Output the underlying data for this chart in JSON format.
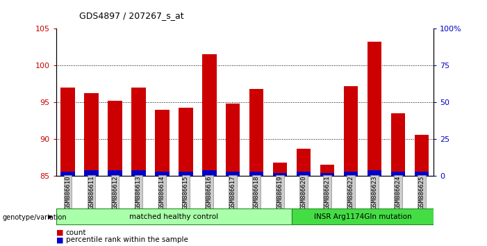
{
  "title": "GDS4897 / 207267_s_at",
  "samples": [
    "GSM886610",
    "GSM886611",
    "GSM886612",
    "GSM886613",
    "GSM886614",
    "GSM886615",
    "GSM886616",
    "GSM886617",
    "GSM886618",
    "GSM886619",
    "GSM886620",
    "GSM886621",
    "GSM886622",
    "GSM886623",
    "GSM886624",
    "GSM886625"
  ],
  "count_values": [
    97.0,
    96.2,
    95.2,
    97.0,
    94.0,
    94.2,
    101.5,
    94.8,
    96.8,
    86.8,
    88.7,
    86.5,
    97.2,
    103.2,
    93.5,
    90.6
  ],
  "percentile_values": [
    3,
    4,
    4,
    4,
    3,
    3,
    4,
    3,
    3,
    2,
    3,
    2,
    3,
    4,
    3,
    3
  ],
  "bar_base": 85,
  "ylim_left": [
    85,
    105
  ],
  "yticks_left": [
    85,
    90,
    95,
    100,
    105
  ],
  "ylim_right": [
    0,
    100
  ],
  "yticks_right": [
    0,
    25,
    50,
    75,
    100
  ],
  "ytick_labels_right": [
    "0",
    "25",
    "50",
    "75",
    "100%"
  ],
  "grid_values": [
    90,
    95,
    100
  ],
  "bar_color_count": "#cc0000",
  "bar_color_pct": "#0000cc",
  "groups": [
    {
      "label": "matched healthy control",
      "start": 0,
      "end": 9,
      "color": "#aaffaa"
    },
    {
      "label": "INSR Arg1174Gln mutation",
      "start": 10,
      "end": 15,
      "color": "#44dd44"
    }
  ],
  "group_label_prefix": "genotype/variation",
  "legend_items": [
    {
      "label": "count",
      "color": "#cc0000"
    },
    {
      "label": "percentile rank within the sample",
      "color": "#0000cc"
    }
  ],
  "bar_width": 0.6,
  "tick_label_bg": "#cccccc",
  "background_color": "#ffffff"
}
